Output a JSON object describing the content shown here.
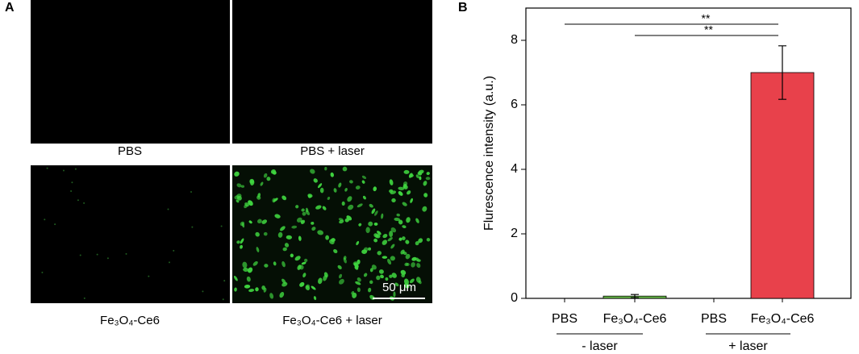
{
  "panel_a": {
    "label": "A",
    "images": [
      {
        "caption": "PBS"
      },
      {
        "caption": "PBS + laser"
      },
      {
        "caption": "Fe₃O₄-Ce6"
      },
      {
        "caption": "Fe₃O₄-Ce6 + laser"
      }
    ],
    "scale_bar": "50 μm"
  },
  "chart_data": {
    "type": "bar",
    "panel_label": "B",
    "y_label": "Flurescence intensity (a.u.)",
    "categories": [
      "PBS",
      "Fe₃O₄-Ce6",
      "PBS",
      "Fe₃O₄-Ce6"
    ],
    "values": [
      0,
      0.07,
      0,
      7.0
    ],
    "errors": [
      0,
      0.05,
      0,
      0.83
    ],
    "colors": [
      "#6abf4b",
      "#6abf4b",
      "#e8414b",
      "#e8414b"
    ],
    "groups": [
      "- laser",
      "+ laser"
    ],
    "significance": [
      "**",
      "**"
    ],
    "ylim": [
      0,
      9
    ],
    "yticks": [
      0,
      2,
      4,
      6,
      8
    ]
  }
}
